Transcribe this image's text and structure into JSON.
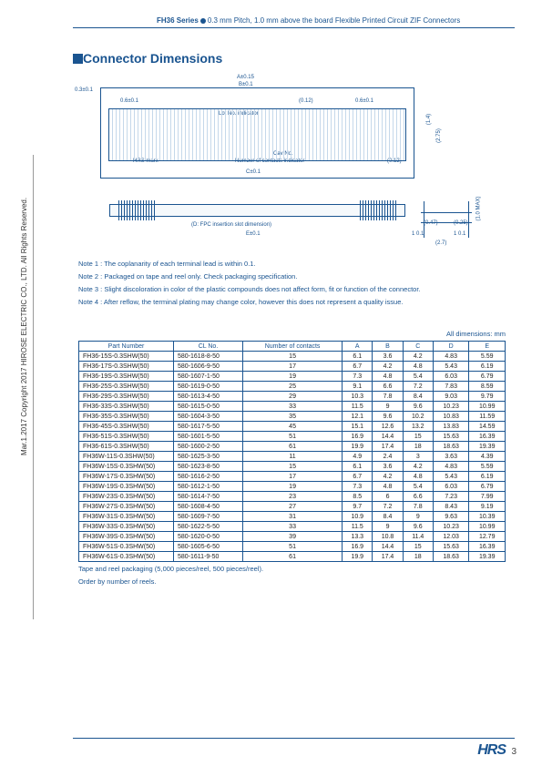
{
  "header": {
    "series": "FH36 Series",
    "desc": "0.3 mm Pitch, 1.0 mm above the board Flexible Printed Circuit ZIF Connectors"
  },
  "side_copyright": "Mar.1.2017  Copyright 2017 HIROSE ELECTRIC CO., LTD. All Rights Reserved.",
  "section_title": "Connector Dimensions",
  "diagram": {
    "labels": {
      "a": "A±0.15",
      "b": "B±0.1",
      "tol03": "0.3±0.1",
      "tol06a": "0.6±0.1",
      "tol06b": "0.6±0.1",
      "p012a": "(0.12)",
      "p012b": "(0.12)",
      "lotno": "Lot No. indicator",
      "hrs": "HRS mark",
      "cavno": "Cav No.",
      "numcont": "Number of contacts indicator",
      "c": "C±0.1",
      "r14": "(1.4)",
      "r275": "(2.75)",
      "d": "(D: FPC insertion slot dimension)",
      "e": "E±0.1",
      "max10": "(1.0 MAX)",
      "p047": "(0.47)",
      "p025": "(0.25)",
      "gd1": "1   0.1",
      "gd2": "1   0.1",
      "p27": "(2.7)"
    }
  },
  "notes": [
    "Note 1 : The coplanarity of each terminal lead is within 0.1.",
    "Note 2 : Packaged on tape and reel only. Check packaging specification.",
    "Note 3 : Slight discoloration in color of the plastic compounds does not affect form, fit or function of the connector.",
    "Note 4 : After reflow, the terminal plating may change color, however this does not represent a quality issue."
  ],
  "all_dims": "All dimensions: mm",
  "table": {
    "headers": [
      "Part Number",
      "CL No.",
      "Number of contacts",
      "A",
      "B",
      "C",
      "D",
      "E"
    ],
    "rows": [
      [
        "FH36-15S-0.3SHW(50)",
        "580-1618-8-50",
        "15",
        "6.1",
        "3.6",
        "4.2",
        "4.83",
        "5.59"
      ],
      [
        "FH36-17S-0.3SHW(50)",
        "580-1606-9-50",
        "17",
        "6.7",
        "4.2",
        "4.8",
        "5.43",
        "6.19"
      ],
      [
        "FH36-19S-0.3SHW(50)",
        "580-1607-1-50",
        "19",
        "7.3",
        "4.8",
        "5.4",
        "6.03",
        "6.79"
      ],
      [
        "FH36-25S-0.3SHW(50)",
        "580-1619-0-50",
        "25",
        "9.1",
        "6.6",
        "7.2",
        "7.83",
        "8.59"
      ],
      [
        "FH36-29S-0.3SHW(50)",
        "580-1613-4-50",
        "29",
        "10.3",
        "7.8",
        "8.4",
        "9.03",
        "9.79"
      ],
      [
        "FH36-33S-0.3SHW(50)",
        "580-1615-0-50",
        "33",
        "11.5",
        "9",
        "9.6",
        "10.23",
        "10.99"
      ],
      [
        "FH36-35S-0.3SHW(50)",
        "580-1604-3-50",
        "35",
        "12.1",
        "9.6",
        "10.2",
        "10.83",
        "11.59"
      ],
      [
        "FH36-45S-0.3SHW(50)",
        "580-1617-5-50",
        "45",
        "15.1",
        "12.6",
        "13.2",
        "13.83",
        "14.59"
      ],
      [
        "FH36-51S-0.3SHW(50)",
        "580-1601-5-50",
        "51",
        "16.9",
        "14.4",
        "15",
        "15.63",
        "16.39"
      ],
      [
        "FH36-61S-0.3SHW(50)",
        "580-1600-2-50",
        "61",
        "19.9",
        "17.4",
        "18",
        "18.63",
        "19.39"
      ],
      [
        "FH36W-11S-0.3SHW(50)",
        "580-1625-3-50",
        "11",
        "4.9",
        "2.4",
        "3",
        "3.63",
        "4.39"
      ],
      [
        "FH36W-15S-0.3SHW(50)",
        "580-1623-8-50",
        "15",
        "6.1",
        "3.6",
        "4.2",
        "4.83",
        "5.59"
      ],
      [
        "FH36W-17S-0.3SHW(50)",
        "580-1616-2-50",
        "17",
        "6.7",
        "4.2",
        "4.8",
        "5.43",
        "6.19"
      ],
      [
        "FH36W-19S-0.3SHW(50)",
        "580-1612-1-50",
        "19",
        "7.3",
        "4.8",
        "5.4",
        "6.03",
        "6.79"
      ],
      [
        "FH36W-23S-0.3SHW(50)",
        "580-1614-7-50",
        "23",
        "8.5",
        "6",
        "6.6",
        "7.23",
        "7.99"
      ],
      [
        "FH36W-27S-0.3SHW(50)",
        "580-1608-4-50",
        "27",
        "9.7",
        "7.2",
        "7.8",
        "8.43",
        "9.19"
      ],
      [
        "FH36W-31S-0.3SHW(50)",
        "580-1609-7-50",
        "31",
        "10.9",
        "8.4",
        "9",
        "9.63",
        "10.39"
      ],
      [
        "FH36W-33S-0.3SHW(50)",
        "580-1622-5-50",
        "33",
        "11.5",
        "9",
        "9.6",
        "10.23",
        "10.99"
      ],
      [
        "FH36W-39S-0.3SHW(50)",
        "580-1620-0-50",
        "39",
        "13.3",
        "10.8",
        "11.4",
        "12.03",
        "12.79"
      ],
      [
        "FH36W-51S-0.3SHW(50)",
        "580-1605-6-50",
        "51",
        "16.9",
        "14.4",
        "15",
        "15.63",
        "16.39"
      ],
      [
        "FH36W-61S-0.3SHW(50)",
        "580-1611-9-50",
        "61",
        "19.9",
        "17.4",
        "18",
        "18.63",
        "19.39"
      ]
    ],
    "footnote1": "Tape and reel packaging (5,000 pieces/reel, 500 pieces/reel).",
    "footnote2": "Order by number of reels."
  },
  "footer": {
    "logo": "HRS",
    "page": "3"
  }
}
